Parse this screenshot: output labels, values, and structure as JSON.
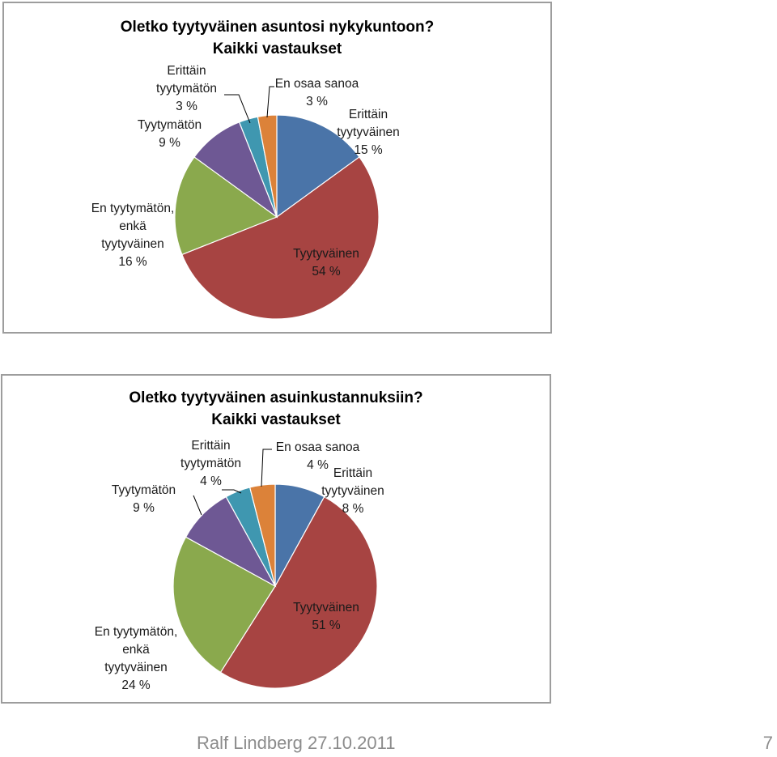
{
  "colors": {
    "blue": "#4a74a8",
    "red": "#a74442",
    "green": "#8aa94d",
    "purple": "#6e5894",
    "teal": "#3f97b0",
    "orange": "#dc8239"
  },
  "chart_data": [
    {
      "type": "pie",
      "title": "Oletko tyytyväinen asuntosi nykykuntoon?",
      "subtitle": "Kaikki vastaukset",
      "slices": [
        {
          "name": "Erittäin tyytyväinen",
          "value": 15,
          "color": "blue",
          "label_lines": [
            "Erittäin",
            "tyytyväinen"
          ],
          "pct": "15 %"
        },
        {
          "name": "Tyytyväinen",
          "value": 54,
          "color": "red",
          "label_lines": [
            "Tyytyväinen"
          ],
          "pct": "54 %"
        },
        {
          "name": "En tyytymätön, enkä tyytyväinen",
          "value": 16,
          "color": "green",
          "label_lines": [
            "En tyytymätön,",
            "enkä",
            "tyytyväinen"
          ],
          "pct": "16 %"
        },
        {
          "name": "Tyytymätön",
          "value": 9,
          "color": "purple",
          "label_lines": [
            "Tyytymätön"
          ],
          "pct": "9 %"
        },
        {
          "name": "Erittäin tyytymätön",
          "value": 3,
          "color": "teal",
          "label_lines": [
            "Erittäin",
            "tyytymätön"
          ],
          "pct": "3 %"
        },
        {
          "name": "En osaa sanoa",
          "value": 3,
          "color": "orange",
          "label_lines": [
            "En osaa sanoa"
          ],
          "pct": "3 %"
        }
      ]
    },
    {
      "type": "pie",
      "title": "Oletko tyytyväinen asuinkustannuksiin?",
      "subtitle": "Kaikki vastaukset",
      "slices": [
        {
          "name": "Erittäin tyytyväinen",
          "value": 8,
          "color": "blue",
          "label_lines": [
            "Erittäin",
            "tyytyväinen"
          ],
          "pct": "8 %"
        },
        {
          "name": "Tyytyväinen",
          "value": 51,
          "color": "red",
          "label_lines": [
            "Tyytyväinen"
          ],
          "pct": "51 %"
        },
        {
          "name": "En tyytymätön, enkä tyytyväinen",
          "value": 24,
          "color": "green",
          "label_lines": [
            "En tyytymätön,",
            "enkä",
            "tyytyväinen"
          ],
          "pct": "24 %"
        },
        {
          "name": "Tyytymätön",
          "value": 9,
          "color": "purple",
          "label_lines": [
            "Tyytymätön"
          ],
          "pct": "9 %"
        },
        {
          "name": "Erittäin tyytymätön",
          "value": 4,
          "color": "teal",
          "label_lines": [
            "Erittäin",
            "tyytymätön"
          ],
          "pct": "4 %"
        },
        {
          "name": "En osaa sanoa",
          "value": 4,
          "color": "orange",
          "label_lines": [
            "En osaa sanoa"
          ],
          "pct": "4 %"
        }
      ]
    }
  ],
  "footer": {
    "author_date": "Ralf Lindberg   27.10.2011",
    "page_number": "7"
  }
}
